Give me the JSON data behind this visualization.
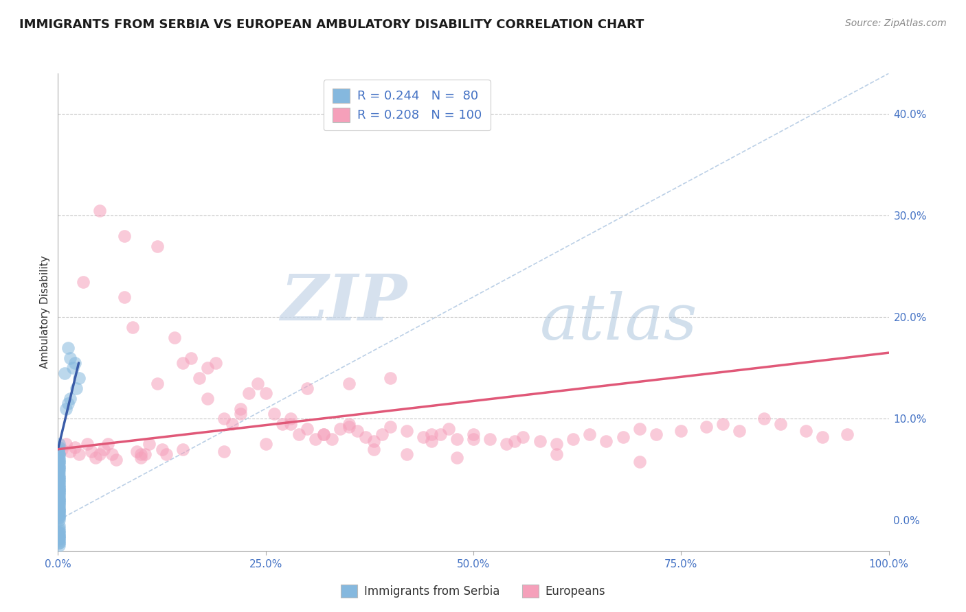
{
  "title": "IMMIGRANTS FROM SERBIA VS EUROPEAN AMBULATORY DISABILITY CORRELATION CHART",
  "source": "Source: ZipAtlas.com",
  "ylabel": "Ambulatory Disability",
  "xlim": [
    0,
    1.0
  ],
  "ylim": [
    -0.03,
    0.44
  ],
  "xticklabels": [
    "0.0%",
    "25.0%",
    "50.0%",
    "75.0%",
    "100.0%"
  ],
  "yticklabels_right": [
    "0.0%",
    "10.0%",
    "20.0%",
    "30.0%",
    "40.0%"
  ],
  "grid_color": "#c8c8c8",
  "background_color": "#ffffff",
  "blue_scatter_x": [
    0.0005,
    0.001,
    0.0005,
    0.001,
    0.0008,
    0.001,
    0.0015,
    0.001,
    0.001,
    0.0012,
    0.0008,
    0.001,
    0.0012,
    0.001,
    0.001,
    0.0008,
    0.001,
    0.0012,
    0.001,
    0.0008,
    0.001,
    0.0008,
    0.001,
    0.001,
    0.001,
    0.0008,
    0.001,
    0.001,
    0.001,
    0.001,
    0.001,
    0.001,
    0.001,
    0.001,
    0.001,
    0.001,
    0.001,
    0.001,
    0.001,
    0.001,
    0.001,
    0.001,
    0.001,
    0.001,
    0.001,
    0.001,
    0.001,
    0.001,
    0.001,
    0.001,
    0.001,
    0.001,
    0.001,
    0.001,
    0.001,
    0.001,
    0.001,
    0.001,
    0.001,
    0.001,
    0.001,
    0.001,
    0.001,
    0.001,
    0.001,
    0.001,
    0.001,
    0.001,
    0.001,
    0.001,
    0.008,
    0.012,
    0.015,
    0.02,
    0.025,
    0.018,
    0.022,
    0.015,
    0.012,
    0.01
  ],
  "blue_scatter_y": [
    0.065,
    0.075,
    0.07,
    0.065,
    0.068,
    0.072,
    0.065,
    0.06,
    0.058,
    0.062,
    0.055,
    0.058,
    0.052,
    0.055,
    0.05,
    0.048,
    0.052,
    0.048,
    0.045,
    0.048,
    0.042,
    0.045,
    0.04,
    0.042,
    0.038,
    0.04,
    0.035,
    0.038,
    0.032,
    0.035,
    0.03,
    0.032,
    0.028,
    0.03,
    0.025,
    0.028,
    0.022,
    0.025,
    0.02,
    0.022,
    0.018,
    0.02,
    0.015,
    0.018,
    0.012,
    0.015,
    0.01,
    0.012,
    0.008,
    0.01,
    0.005,
    0.008,
    0.003,
    0.005,
    0.0,
    0.003,
    -0.005,
    -0.008,
    -0.01,
    -0.012,
    -0.015,
    -0.018,
    -0.015,
    -0.012,
    -0.02,
    -0.022,
    -0.018,
    -0.015,
    -0.022,
    -0.025,
    0.145,
    0.17,
    0.16,
    0.155,
    0.14,
    0.15,
    0.13,
    0.12,
    0.115,
    0.11
  ],
  "pink_scatter_x": [
    0.005,
    0.01,
    0.015,
    0.02,
    0.025,
    0.03,
    0.035,
    0.04,
    0.045,
    0.05,
    0.055,
    0.06,
    0.065,
    0.07,
    0.08,
    0.09,
    0.095,
    0.1,
    0.105,
    0.11,
    0.12,
    0.125,
    0.13,
    0.14,
    0.15,
    0.16,
    0.17,
    0.18,
    0.19,
    0.2,
    0.21,
    0.22,
    0.23,
    0.24,
    0.25,
    0.26,
    0.27,
    0.28,
    0.29,
    0.3,
    0.31,
    0.32,
    0.33,
    0.34,
    0.35,
    0.36,
    0.37,
    0.38,
    0.39,
    0.4,
    0.42,
    0.44,
    0.45,
    0.46,
    0.47,
    0.48,
    0.5,
    0.52,
    0.54,
    0.56,
    0.58,
    0.6,
    0.62,
    0.64,
    0.66,
    0.68,
    0.7,
    0.72,
    0.75,
    0.78,
    0.8,
    0.82,
    0.85,
    0.87,
    0.9,
    0.92,
    0.95,
    0.1,
    0.15,
    0.2,
    0.25,
    0.3,
    0.35,
    0.4,
    0.5,
    0.6,
    0.7,
    0.35,
    0.45,
    0.55,
    0.05,
    0.08,
    0.12,
    0.18,
    0.22,
    0.28,
    0.32,
    0.38,
    0.42,
    0.48
  ],
  "pink_scatter_y": [
    0.07,
    0.075,
    0.068,
    0.072,
    0.065,
    0.235,
    0.075,
    0.068,
    0.062,
    0.065,
    0.07,
    0.075,
    0.065,
    0.06,
    0.22,
    0.19,
    0.068,
    0.062,
    0.065,
    0.075,
    0.135,
    0.07,
    0.065,
    0.18,
    0.155,
    0.16,
    0.14,
    0.12,
    0.155,
    0.1,
    0.095,
    0.11,
    0.125,
    0.135,
    0.125,
    0.105,
    0.095,
    0.1,
    0.085,
    0.09,
    0.08,
    0.085,
    0.08,
    0.09,
    0.095,
    0.088,
    0.082,
    0.078,
    0.085,
    0.092,
    0.088,
    0.082,
    0.078,
    0.085,
    0.09,
    0.08,
    0.085,
    0.08,
    0.075,
    0.082,
    0.078,
    0.075,
    0.08,
    0.085,
    0.078,
    0.082,
    0.09,
    0.085,
    0.088,
    0.092,
    0.095,
    0.088,
    0.1,
    0.095,
    0.088,
    0.082,
    0.085,
    0.065,
    0.07,
    0.068,
    0.075,
    0.13,
    0.135,
    0.14,
    0.08,
    0.065,
    0.058,
    0.092,
    0.085,
    0.078,
    0.305,
    0.28,
    0.27,
    0.15,
    0.105,
    0.095,
    0.085,
    0.07,
    0.065,
    0.062
  ],
  "blue_line_x0": 0.0,
  "blue_line_y0": 0.07,
  "blue_line_x1": 0.025,
  "blue_line_y1": 0.155,
  "pink_line_x0": 0.0,
  "pink_line_y0": 0.07,
  "pink_line_x1": 1.0,
  "pink_line_y1": 0.165,
  "ref_line_x0": 0.0,
  "ref_line_y0": 0.0,
  "ref_line_x1": 1.0,
  "ref_line_y1": 0.44,
  "watermark_zip": "ZIP",
  "watermark_atlas": "atlas",
  "blue_color": "#85b8de",
  "pink_color": "#f5a0ba",
  "blue_line_color": "#3a5ca8",
  "pink_line_color": "#e05878",
  "ref_line_color": "#aac4e0",
  "title_fontsize": 13,
  "axis_label_fontsize": 11,
  "tick_fontsize": 11,
  "source_fontsize": 10
}
